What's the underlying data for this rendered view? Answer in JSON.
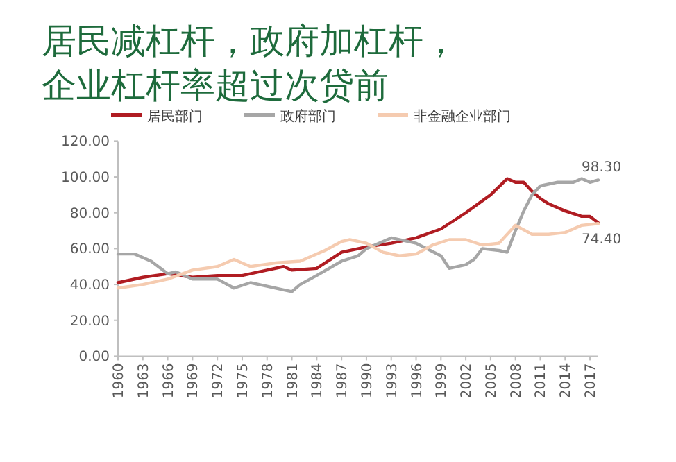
{
  "chart_data": {
    "type": "line",
    "title": "居民减杠杆，政府加杠杆，",
    "subtitle": "企业杠杆率超过次贷前",
    "legend": "top",
    "xlim": [
      1960,
      2018
    ],
    "ylim": [
      0,
      120
    ],
    "xticks": [
      1960,
      1963,
      1966,
      1969,
      1972,
      1975,
      1978,
      1981,
      1984,
      1987,
      1990,
      1993,
      1996,
      1999,
      2002,
      2005,
      2008,
      2011,
      2014,
      2017
    ],
    "yticks": [
      {
        "value": 0,
        "label": "0.00"
      },
      {
        "value": 20,
        "label": "20.00"
      },
      {
        "value": 40,
        "label": "40.00"
      },
      {
        "value": 60,
        "label": "60.00"
      },
      {
        "value": 80,
        "label": "80.00"
      },
      {
        "value": 100,
        "label": "100.00"
      },
      {
        "value": 120,
        "label": "120.00"
      }
    ],
    "series": [
      {
        "name": "居民部门",
        "color": "#b01c22",
        "x": [
          1960,
          1963,
          1966,
          1969,
          1972,
          1975,
          1978,
          1980,
          1981,
          1984,
          1987,
          1990,
          1993,
          1996,
          1999,
          2002,
          2005,
          2007,
          2008,
          2009,
          2010,
          2011,
          2012,
          2014,
          2016,
          2017,
          2018
        ],
        "values": [
          41,
          44,
          46,
          44,
          45,
          45,
          48,
          50,
          48,
          49,
          58,
          61,
          63,
          66,
          71,
          80,
          90,
          99,
          97,
          97,
          92,
          88,
          85,
          81,
          78,
          78,
          74.4
        ]
      },
      {
        "name": "政府部门",
        "color": "#a6a6a6",
        "x": [
          1960,
          1962,
          1964,
          1966,
          1967,
          1969,
          1972,
          1974,
          1976,
          1978,
          1980,
          1981,
          1982,
          1984,
          1987,
          1989,
          1990,
          1993,
          1996,
          1999,
          2000,
          2002,
          2003,
          2004,
          2006,
          2007,
          2008,
          2009,
          2010,
          2011,
          2013,
          2015,
          2016,
          2017,
          2018
        ],
        "values": [
          57,
          57,
          53,
          46,
          47,
          43,
          43,
          38,
          41,
          39,
          37,
          36,
          40,
          45,
          53,
          56,
          60,
          66,
          63,
          56,
          49,
          51,
          54,
          60,
          59,
          58,
          70,
          81,
          90,
          95,
          97,
          97,
          99,
          97,
          98.3
        ]
      },
      {
        "name": "非金融企业部门",
        "color": "#f5cbb0",
        "x": [
          1960,
          1963,
          1966,
          1969,
          1972,
          1974,
          1976,
          1979,
          1982,
          1985,
          1987,
          1988,
          1990,
          1992,
          1994,
          1996,
          1998,
          2000,
          2002,
          2004,
          2006,
          2008,
          2010,
          2012,
          2014,
          2016,
          2018
        ],
        "values": [
          38,
          40,
          43,
          48,
          50,
          54,
          50,
          52,
          53,
          59,
          64,
          65,
          63,
          58,
          56,
          57,
          62,
          65,
          65,
          62,
          63,
          73,
          68,
          68,
          69,
          73,
          74
        ]
      }
    ],
    "annotations": [
      {
        "text": "98.30",
        "x": 2018,
        "y": 98.3
      },
      {
        "text": "74.40",
        "x": 2018,
        "y": 74.4
      }
    ]
  }
}
